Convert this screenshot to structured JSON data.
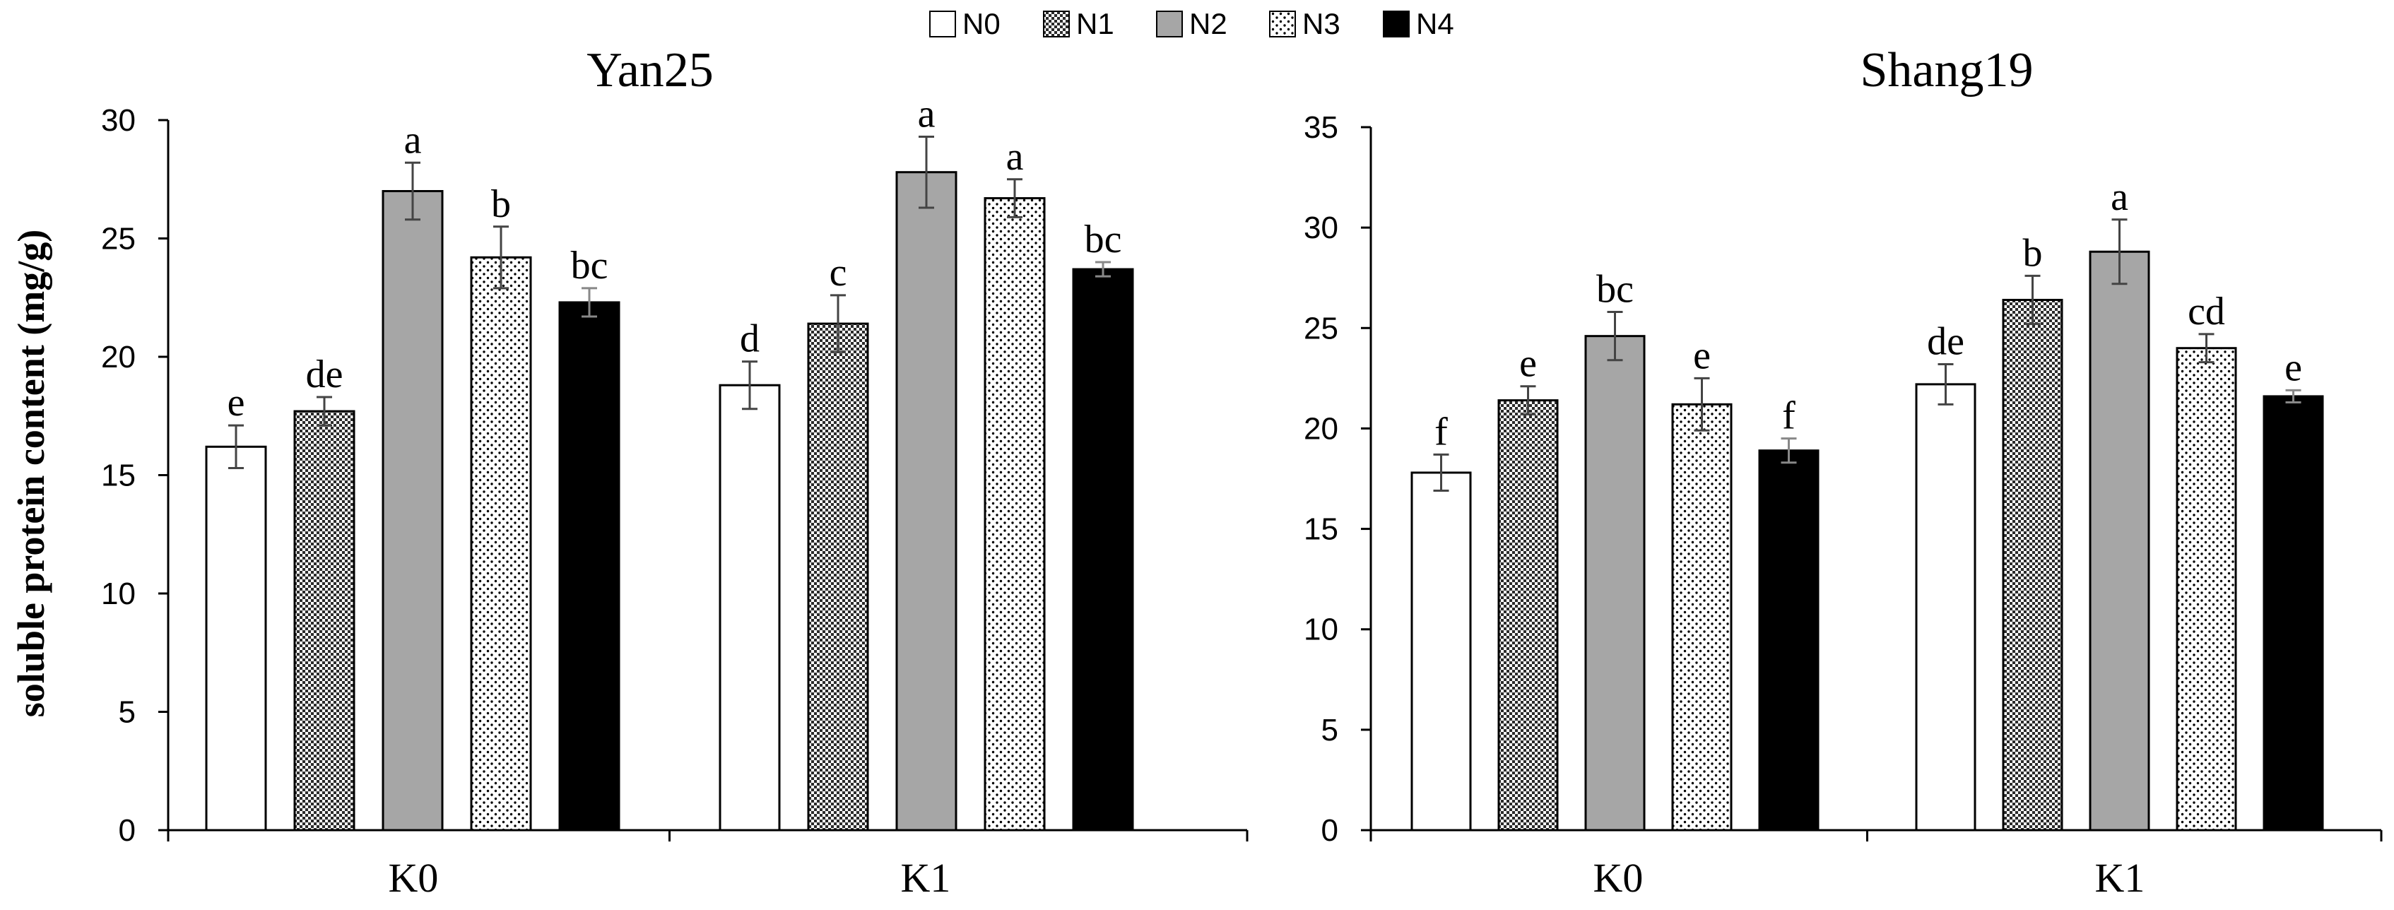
{
  "legend": [
    "N0",
    "N1",
    "N2",
    "N3",
    "N4"
  ],
  "series_fills": {
    "N0": "#ffffff",
    "N1": "checkered-gray",
    "N2": "#a6a6a6",
    "N3": "dotted-white",
    "N4": "#000000"
  },
  "ylabel": "soluble protein content (mg/g)",
  "chart_data": [
    {
      "type": "bar",
      "title": "Yan25",
      "categories": [
        "K0",
        "K1"
      ],
      "ylim": [
        0,
        30
      ],
      "yticks": [
        0,
        5,
        10,
        15,
        20,
        25,
        30
      ],
      "grid": false,
      "legend_position": "top-center",
      "series": [
        {
          "name": "N0",
          "values": [
            16.2,
            18.8
          ],
          "errors": [
            0.9,
            1.0
          ],
          "letters": [
            "e",
            "d"
          ]
        },
        {
          "name": "N1",
          "values": [
            17.7,
            21.4
          ],
          "errors": [
            0.6,
            1.2
          ],
          "letters": [
            "de",
            "c"
          ]
        },
        {
          "name": "N2",
          "values": [
            27.0,
            27.8
          ],
          "errors": [
            1.2,
            1.5
          ],
          "letters": [
            "a",
            "a"
          ]
        },
        {
          "name": "N3",
          "values": [
            24.2,
            26.7
          ],
          "errors": [
            1.3,
            0.8
          ],
          "letters": [
            "b",
            "a"
          ]
        },
        {
          "name": "N4",
          "values": [
            22.3,
            23.7
          ],
          "errors": [
            0.6,
            0.3
          ],
          "letters": [
            "bc",
            "bc"
          ]
        }
      ]
    },
    {
      "type": "bar",
      "title": "Shang19",
      "categories": [
        "K0",
        "K1"
      ],
      "ylim": [
        0,
        35
      ],
      "yticks": [
        0,
        5,
        10,
        15,
        20,
        25,
        30,
        35
      ],
      "grid": false,
      "series": [
        {
          "name": "N0",
          "values": [
            17.8,
            22.2
          ],
          "errors": [
            0.9,
            1.0
          ],
          "letters": [
            "f",
            "de"
          ]
        },
        {
          "name": "N1",
          "values": [
            21.4,
            26.4
          ],
          "errors": [
            0.7,
            1.2
          ],
          "letters": [
            "e",
            "b"
          ]
        },
        {
          "name": "N2",
          "values": [
            24.6,
            28.8
          ],
          "errors": [
            1.2,
            1.6
          ],
          "letters": [
            "bc",
            "a"
          ]
        },
        {
          "name": "N3",
          "values": [
            21.2,
            24.0
          ],
          "errors": [
            1.3,
            0.7
          ],
          "letters": [
            "e",
            "cd"
          ]
        },
        {
          "name": "N4",
          "values": [
            18.9,
            21.6
          ],
          "errors": [
            0.6,
            0.3
          ],
          "letters": [
            "f",
            "e"
          ]
        }
      ]
    }
  ]
}
